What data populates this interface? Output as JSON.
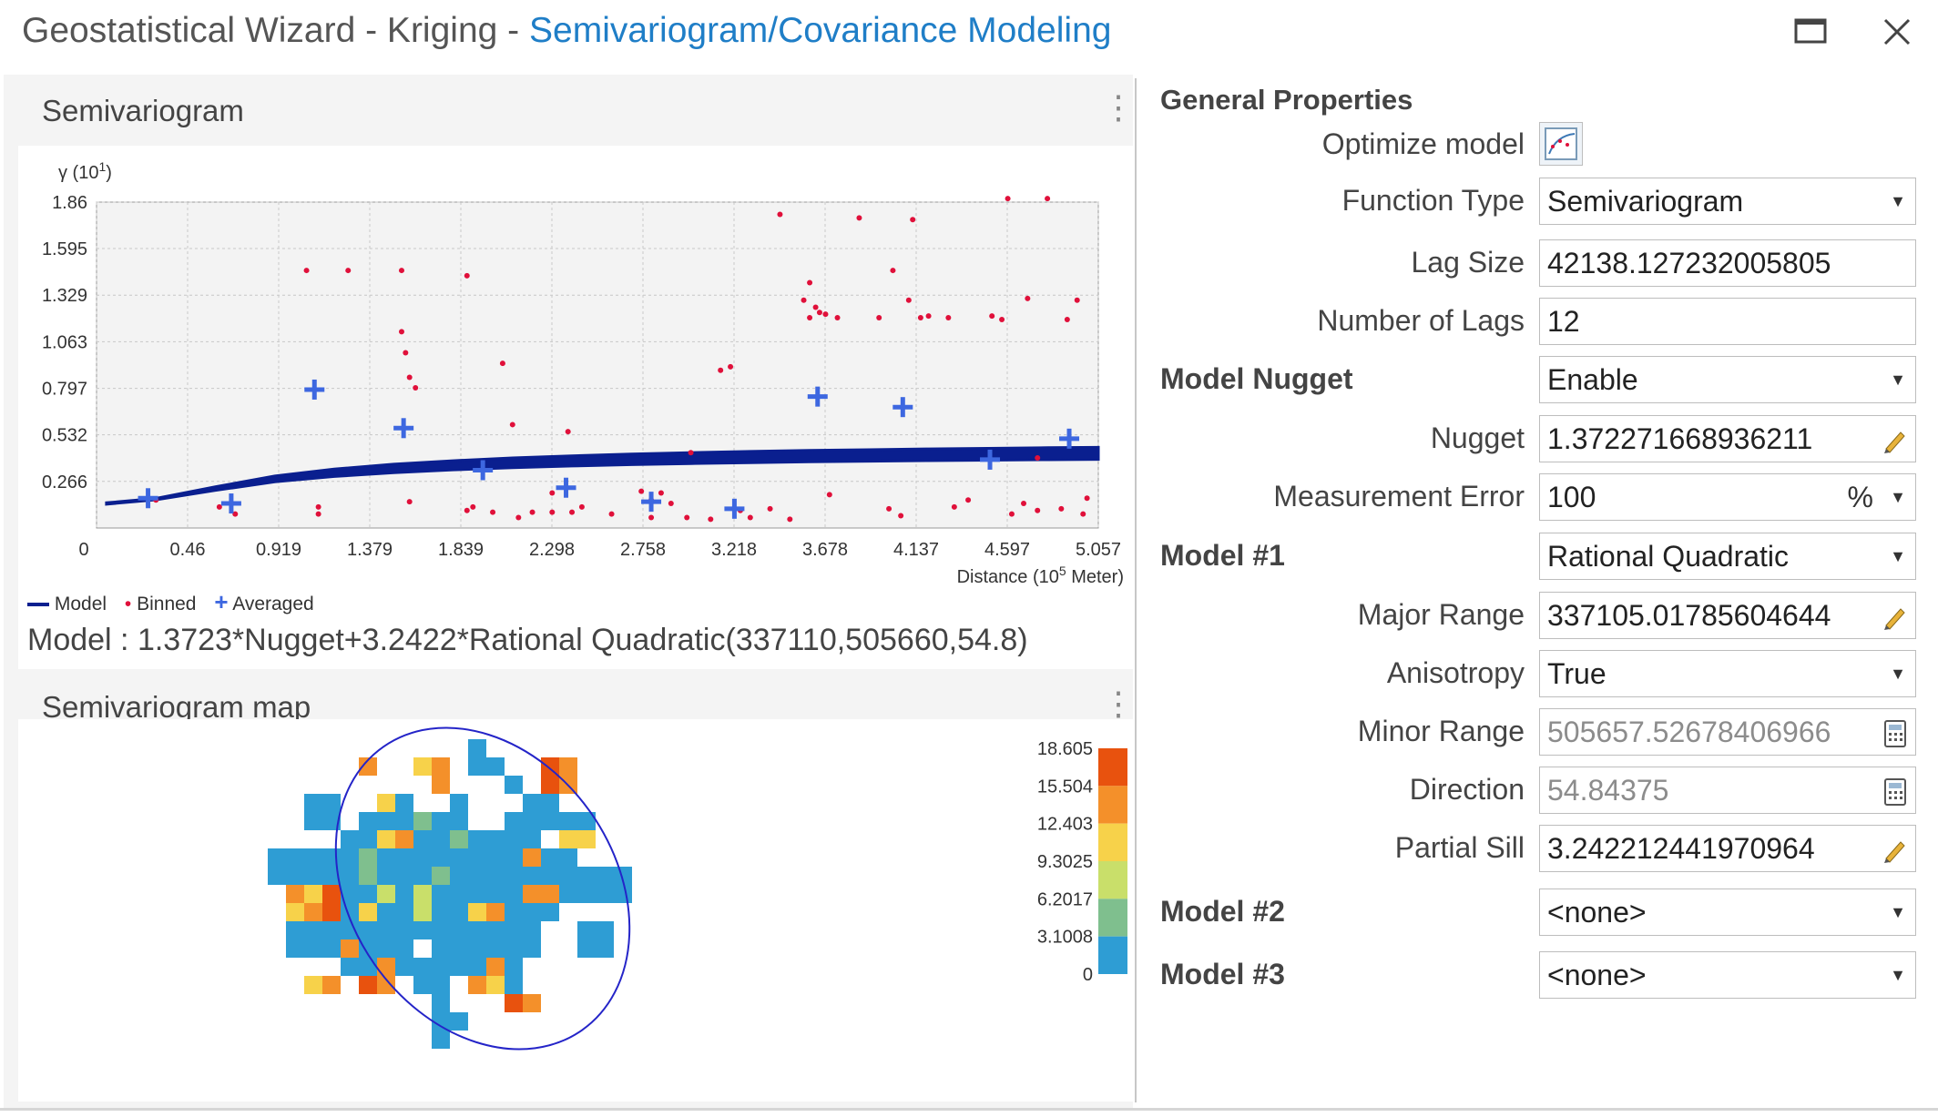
{
  "window": {
    "title_prefix": "Geostatistical Wizard - Kriging - ",
    "title_accent": "Semivariogram/Covariance Modeling"
  },
  "semivariogram": {
    "header": "Semivariogram",
    "model_text": "Model : 1.3723*Nugget+3.2422*Rational Quadratic(337110,505660,54.8)",
    "legend": {
      "model": "Model",
      "binned": "Binned",
      "averaged": "Averaged"
    }
  },
  "semivariogram_map": {
    "header": "Semivariogram map",
    "colorbar": {
      "ticks": [
        "18.605",
        "15.504",
        "12.403",
        "9.3025",
        "6.2017",
        "3.1008",
        "0"
      ],
      "colors": [
        "#e8520e",
        "#f4902a",
        "#f7d24a",
        "#c9df6a",
        "#7fbf8e",
        "#2e9dd4"
      ]
    }
  },
  "chart_data": {
    "type": "scatter",
    "ylabel_base": "γ (10",
    "ylabel_exp": "1",
    "ylabel_end": ")",
    "xlabel_base": "Distance (10",
    "xlabel_exp": "5",
    "xlabel_end": " Meter)",
    "x_ticks": [
      "0",
      "0.46",
      "0.919",
      "1.379",
      "1.839",
      "2.298",
      "2.758",
      "3.218",
      "3.678",
      "4.137",
      "4.597",
      "5.057"
    ],
    "y_ticks": [
      "0.266",
      "0.532",
      "0.797",
      "1.063",
      "1.329",
      "1.595",
      "1.86"
    ],
    "xlim": [
      0,
      5.057
    ],
    "ylim": [
      0,
      1.86
    ],
    "grid": true,
    "legend_position": "bottom-left",
    "colors": {
      "model": "#0a1f8f",
      "binned": "#e0103a",
      "averaged": "#3d67e0"
    },
    "series": [
      {
        "name": "Model",
        "type": "line",
        "x": [
          0.05,
          0.3,
          0.6,
          0.9,
          1.2,
          1.5,
          1.8,
          2.1,
          2.4,
          2.7,
          3.0,
          3.3,
          3.6,
          3.9,
          4.2,
          4.5,
          4.8,
          5.057
        ],
        "y": [
          0.14,
          0.165,
          0.225,
          0.28,
          0.315,
          0.34,
          0.358,
          0.372,
          0.383,
          0.392,
          0.399,
          0.405,
          0.41,
          0.414,
          0.418,
          0.421,
          0.424,
          0.426
        ]
      },
      {
        "name": "Averaged",
        "type": "scatter",
        "x": [
          0.26,
          0.68,
          1.1,
          1.55,
          1.95,
          2.37,
          2.8,
          3.22,
          3.64,
          4.07,
          4.51,
          4.91
        ],
        "y": [
          0.17,
          0.14,
          0.79,
          0.57,
          0.33,
          0.23,
          0.15,
          0.11,
          0.75,
          0.69,
          0.39,
          0.51
        ]
      },
      {
        "name": "Binned",
        "type": "scatter",
        "x": [
          0.3,
          0.62,
          0.7,
          1.06,
          1.12,
          1.12,
          1.27,
          1.54,
          1.54,
          1.56,
          1.58,
          1.61,
          1.58,
          1.87,
          1.87,
          1.9,
          2.0,
          2.05,
          2.13,
          2.2,
          2.3,
          2.38,
          2.4,
          2.45,
          2.3,
          2.8,
          2.75,
          2.85,
          2.9,
          2.98,
          3.1,
          3.15,
          3.2,
          3.25,
          3.3,
          3.4,
          3.45,
          3.5,
          3.57,
          3.6,
          3.6,
          3.63,
          3.65,
          3.68,
          3.74,
          3.85,
          3.95,
          4.02,
          4.06,
          4.12,
          4.1,
          4.16,
          4.2,
          4.3,
          4.33,
          4.52,
          4.57,
          4.6,
          4.7,
          4.75,
          4.8,
          4.9,
          4.95,
          5.0,
          2.1,
          2.6,
          2.8,
          3.0,
          3.7,
          4.0,
          4.4,
          4.62,
          4.68,
          4.75,
          4.87,
          4.98
        ],
        "y": [
          0.16,
          0.12,
          0.08,
          1.47,
          0.12,
          0.08,
          1.47,
          1.47,
          1.12,
          1.0,
          0.86,
          0.8,
          0.15,
          1.44,
          0.1,
          0.12,
          0.09,
          0.94,
          0.06,
          0.09,
          0.2,
          0.55,
          0.09,
          0.12,
          0.09,
          0.06,
          0.21,
          0.2,
          0.14,
          0.06,
          0.05,
          0.9,
          0.92,
          0.1,
          0.06,
          0.11,
          1.79,
          0.05,
          1.3,
          1.4,
          1.2,
          1.26,
          1.23,
          1.22,
          1.2,
          1.77,
          1.2,
          1.47,
          0.07,
          1.76,
          1.3,
          1.2,
          1.21,
          1.2,
          0.12,
          1.21,
          1.19,
          1.88,
          1.31,
          0.4,
          1.88,
          1.19,
          1.3,
          0.17,
          0.59,
          0.08,
          0.16,
          0.43,
          0.19,
          0.11,
          0.16,
          0.08,
          0.14,
          0.1,
          0.11,
          0.08
        ]
      }
    ]
  },
  "props": {
    "header": "General Properties",
    "optimize_label": "Optimize model",
    "function_type": {
      "label": "Function Type",
      "value": "Semivariogram"
    },
    "lag_size": {
      "label": "Lag Size",
      "value": "42138.127232005805"
    },
    "number_of_lags": {
      "label": "Number of Lags",
      "value": "12"
    },
    "model_nugget": {
      "label": "Model Nugget",
      "value": "Enable"
    },
    "nugget": {
      "label": "Nugget",
      "value": "1.372271668936211"
    },
    "measurement_error": {
      "label": "Measurement Error",
      "value": "100",
      "unit": "%"
    },
    "model1": {
      "label": "Model #1",
      "value": "Rational Quadratic"
    },
    "major_range": {
      "label": "Major Range",
      "value": "337105.01785604644"
    },
    "anisotropy": {
      "label": "Anisotropy",
      "value": "True"
    },
    "minor_range": {
      "label": "Minor Range",
      "value": "505657.52678406966"
    },
    "direction": {
      "label": "Direction",
      "value": "54.84375"
    },
    "partial_sill": {
      "label": "Partial Sill",
      "value": "3.242212441970964"
    },
    "model2": {
      "label": "Model #2",
      "value": "<none>"
    },
    "model3": {
      "label": "Model #3",
      "value": "<none>"
    }
  }
}
